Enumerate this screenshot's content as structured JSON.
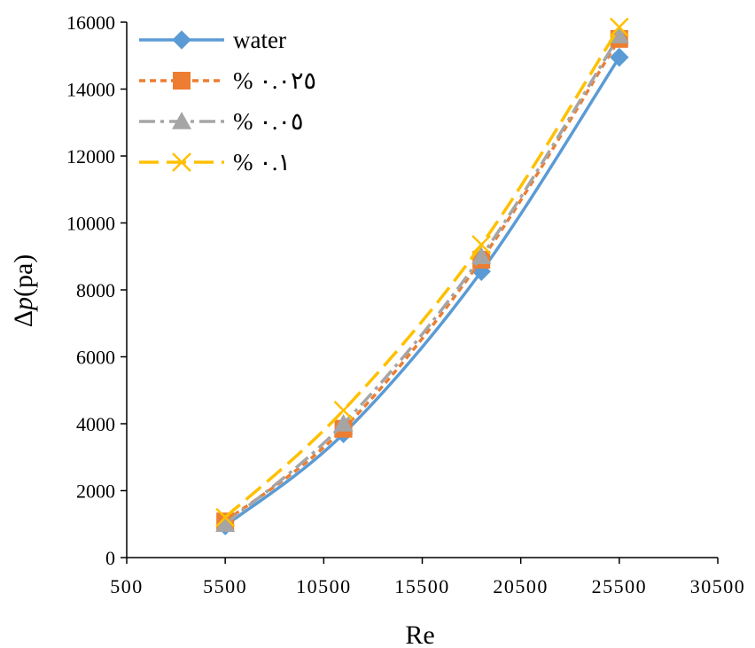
{
  "chart_data": {
    "type": "line",
    "xlabel": "Re",
    "ylabel_prefix": "Δ",
    "ylabel_italic": "p",
    "ylabel_suffix": "(pa)",
    "xlim": [
      500,
      30500
    ],
    "ylim": [
      0,
      16000
    ],
    "x_ticks": [
      500,
      5500,
      10500,
      15500,
      20500,
      25500,
      30500
    ],
    "y_ticks": [
      0,
      2000,
      4000,
      6000,
      8000,
      10000,
      12000,
      14000,
      16000
    ],
    "x_tick_labels": [
      "500",
      "5500",
      "10500",
      "15500",
      "20500",
      "25500",
      "30500"
    ],
    "y_tick_labels": [
      "0",
      "2000",
      "4000",
      "6000",
      "8000",
      "10000",
      "12000",
      "14000",
      "16000"
    ],
    "grid": false,
    "legend_position": "top-left",
    "x": [
      5500,
      11500,
      18500,
      25500
    ],
    "series": [
      {
        "name": "water",
        "values": [
          950,
          3700,
          8550,
          14950
        ],
        "color": "#5B9BD5",
        "dash": "solid",
        "marker": "diamond"
      },
      {
        "name": "% ٠.٠٢٥",
        "values": [
          1080,
          3850,
          8900,
          15500
        ],
        "color": "#ED7D31",
        "dash": "short-dash",
        "marker": "square"
      },
      {
        "name": "% ٠.٠٥",
        "values": [
          1000,
          4000,
          9000,
          15600
        ],
        "color": "#A5A5A5",
        "dash": "dash-dot",
        "marker": "triangle"
      },
      {
        "name": "% ٠.١",
        "values": [
          1200,
          4400,
          9350,
          15850
        ],
        "color": "#FFC000",
        "dash": "long-dash",
        "marker": "x"
      }
    ]
  }
}
